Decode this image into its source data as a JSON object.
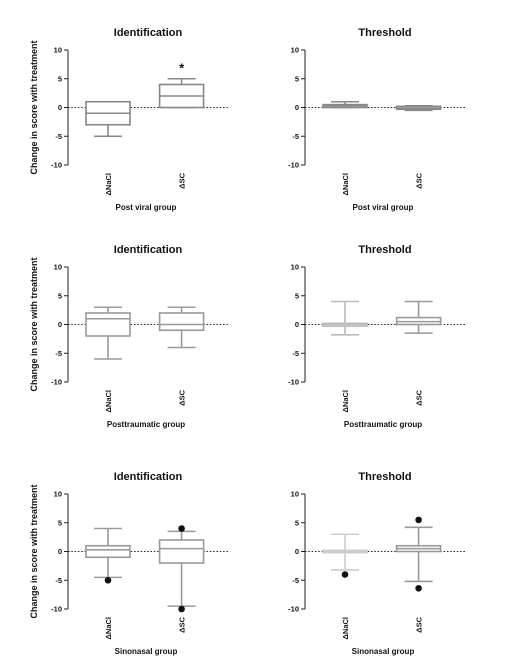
{
  "y_axis_label": "Change in score with treatment",
  "chart_data": [
    {
      "type": "boxplot",
      "title": "Identification",
      "group_label": "Post viral group",
      "ylabel": "Change in score with treatment",
      "ylim": [
        -10,
        10
      ],
      "yticks": [
        10,
        5,
        0,
        -5,
        -10
      ],
      "reference_line": 0,
      "categories": [
        "ΔNaCl",
        "ΔSC"
      ],
      "boxes": [
        {
          "category": "ΔNaCl",
          "min": -5,
          "q1": -3,
          "median": -1,
          "q3": 1,
          "max": 1,
          "outliers": [],
          "color": "#888888"
        },
        {
          "category": "ΔSC",
          "min": 0,
          "q1": 0,
          "median": 2,
          "q3": 4,
          "max": 5,
          "outliers": [],
          "color": "#888888"
        }
      ],
      "annotations": [
        {
          "category": "ΔSC",
          "text": "*",
          "y": 7
        }
      ]
    },
    {
      "type": "boxplot",
      "title": "Threshold",
      "group_label": "Post viral group",
      "ylabel": "",
      "ylim": [
        -10,
        10
      ],
      "yticks": [
        10,
        5,
        0,
        -5,
        -10
      ],
      "reference_line": 0,
      "categories": [
        "ΔNaCl",
        "ΔSC"
      ],
      "boxes": [
        {
          "category": "ΔNaCl",
          "min": 0,
          "q1": 0,
          "median": 0.3,
          "q3": 0.5,
          "max": 1,
          "outliers": [],
          "color": "#888888"
        },
        {
          "category": "ΔSC",
          "min": -0.5,
          "q1": -0.3,
          "median": -0.1,
          "q3": 0.2,
          "max": 0.3,
          "outliers": [],
          "color": "#888888"
        }
      ],
      "annotations": []
    },
    {
      "type": "boxplot",
      "title": "Identification",
      "group_label": "Posttraumatic group",
      "ylabel": "Change in score with treatment",
      "ylim": [
        -10,
        10
      ],
      "yticks": [
        10,
        5,
        0,
        -5,
        -10
      ],
      "reference_line": 0,
      "categories": [
        "ΔNaCl",
        "ΔSC"
      ],
      "boxes": [
        {
          "category": "ΔNaCl",
          "min": -6,
          "q1": -2,
          "median": 1,
          "q3": 2,
          "max": 3,
          "outliers": [],
          "color": "#999999"
        },
        {
          "category": "ΔSC",
          "min": -4,
          "q1": -1,
          "median": 0,
          "q3": 2,
          "max": 3,
          "outliers": [],
          "color": "#999999"
        }
      ],
      "annotations": []
    },
    {
      "type": "boxplot",
      "title": "Threshold",
      "group_label": "Posttraumatic group",
      "ylabel": "",
      "ylim": [
        -10,
        10
      ],
      "yticks": [
        10,
        5,
        0,
        -5,
        -10
      ],
      "reference_line": 0,
      "categories": [
        "ΔNaCl",
        "ΔSC"
      ],
      "boxes": [
        {
          "category": "ΔNaCl",
          "min": -1.8,
          "q1": -0.3,
          "median": 0,
          "q3": 0.2,
          "max": 4,
          "outliers": [],
          "color": "#bbbbbb"
        },
        {
          "category": "ΔSC",
          "min": -1.5,
          "q1": 0,
          "median": 0.5,
          "q3": 1.2,
          "max": 4,
          "outliers": [],
          "color": "#999999"
        }
      ],
      "annotations": []
    },
    {
      "type": "boxplot",
      "title": "Identification",
      "group_label": "Sinonasal group",
      "ylabel": "Change in score with treatment",
      "ylim": [
        -10,
        10
      ],
      "yticks": [
        10,
        5,
        0,
        -5,
        -10
      ],
      "reference_line": 0,
      "categories": [
        "ΔNaCl",
        "ΔSC"
      ],
      "boxes": [
        {
          "category": "ΔNaCl",
          "min": -4.5,
          "q1": -1,
          "median": 0.3,
          "q3": 1,
          "max": 4,
          "outliers": [
            -5
          ],
          "color": "#999999"
        },
        {
          "category": "ΔSC",
          "min": -9.5,
          "q1": -2,
          "median": 0.5,
          "q3": 2,
          "max": 3.5,
          "outliers": [
            4,
            -10
          ],
          "color": "#999999"
        }
      ],
      "annotations": []
    },
    {
      "type": "boxplot",
      "title": "Threshold",
      "group_label": "Sinonasal group",
      "ylabel": "",
      "ylim": [
        -10,
        10
      ],
      "yticks": [
        10,
        5,
        0,
        -5,
        -10
      ],
      "reference_line": 0,
      "categories": [
        "ΔNaCl",
        "ΔSC"
      ],
      "boxes": [
        {
          "category": "ΔNaCl",
          "min": -3.2,
          "q1": -0.2,
          "median": 0,
          "q3": 0.2,
          "max": 3,
          "outliers": [
            -4
          ],
          "color": "#cccccc"
        },
        {
          "category": "ΔSC",
          "min": -5.2,
          "q1": 0,
          "median": 0.5,
          "q3": 1,
          "max": 4.2,
          "outliers": [
            5.5,
            -6.4
          ],
          "color": "#999999"
        }
      ],
      "annotations": []
    }
  ]
}
